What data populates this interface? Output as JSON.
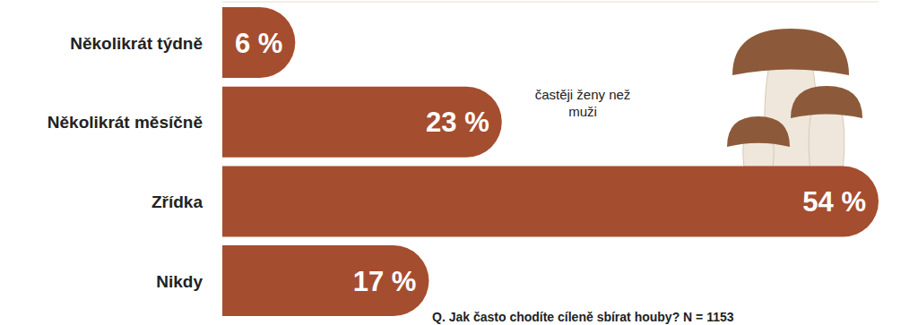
{
  "chart_data": {
    "type": "bar",
    "orientation": "horizontal",
    "title": "Q. Jak často chodíte cíleně sbírat houby? N = 1153",
    "annotations": [
      "častěji ženy než muži"
    ],
    "categories": [
      "Několikrát týdně",
      "Několikrát měsíčně",
      "Zřídka",
      "Nikdy"
    ],
    "values": [
      6,
      23,
      54,
      17
    ],
    "value_labels": [
      "6 %",
      "23 %",
      "54 %",
      "17 %"
    ],
    "color": "#a54d2f",
    "xlim": [
      0,
      54
    ],
    "xticks": [],
    "grid": false,
    "data_labels": true,
    "tick_labels": "y"
  }
}
